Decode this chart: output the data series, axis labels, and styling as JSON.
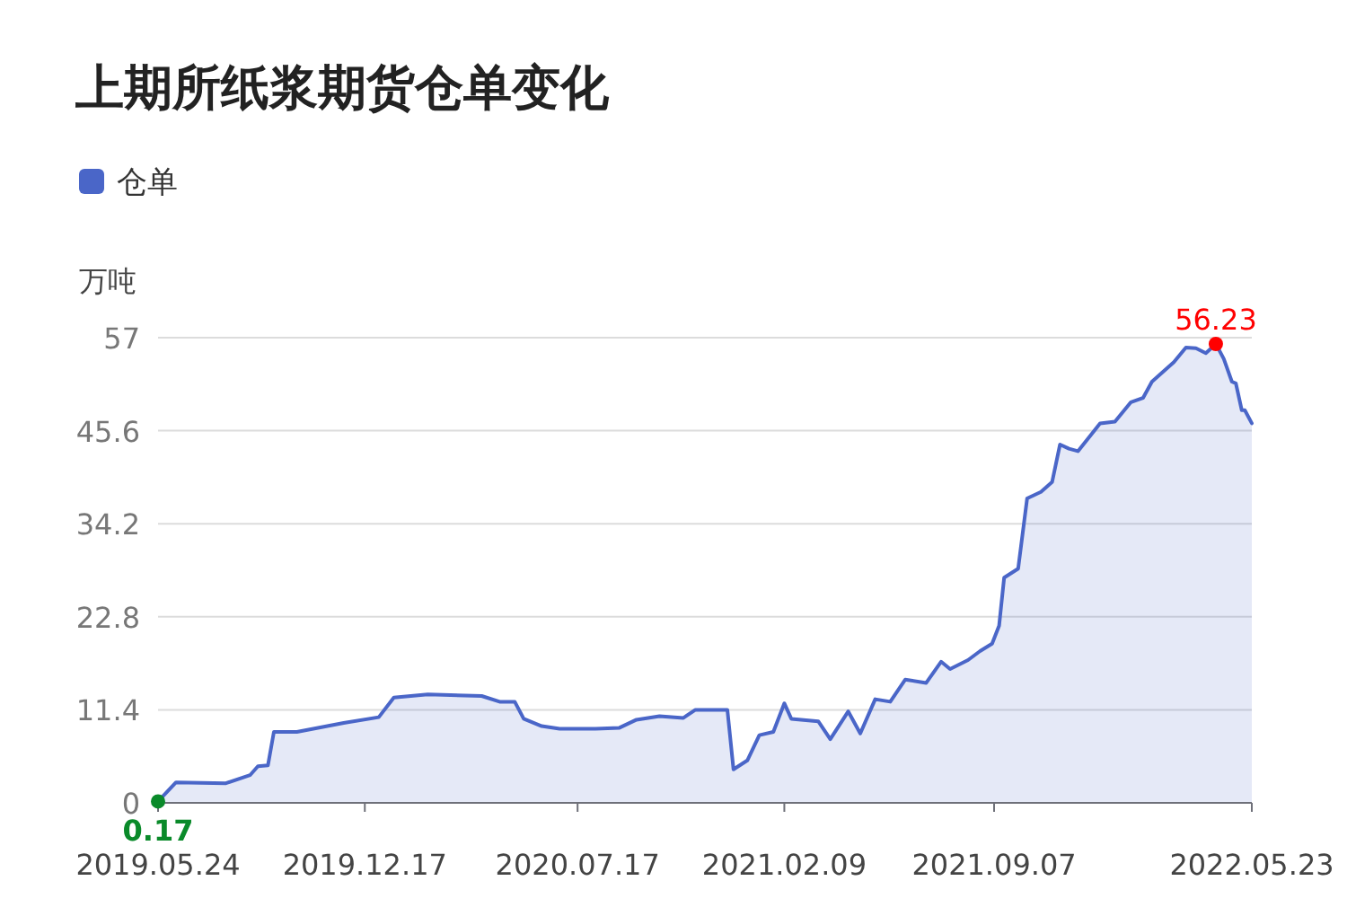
{
  "chart_data": {
    "type": "area",
    "title": "上期所纸浆期货仓单变化",
    "ylabel": "万吨",
    "x": [
      "2019-05-24",
      "2019-06-11",
      "2019-07-31",
      "2019-08-24",
      "2019-09-01",
      "2019-09-11",
      "2019-09-17",
      "2019-10-10",
      "2019-11-26",
      "2019-12-31",
      "2020-01-15",
      "2020-02-18",
      "2020-04-12",
      "2020-04-30",
      "2020-05-15",
      "2020-05-24",
      "2020-06-11",
      "2020-06-29",
      "2020-08-04",
      "2020-08-28",
      "2020-09-14",
      "2020-10-07",
      "2020-10-31",
      "2020-11-12",
      "2020-12-11",
      "2020-12-14",
      "2020-12-20",
      "2021-01-03",
      "2021-01-15",
      "2021-01-29",
      "2021-02-09",
      "2021-02-16",
      "2021-03-15",
      "2021-03-27",
      "2021-04-14",
      "2021-04-26",
      "2021-05-11",
      "2021-05-26",
      "2021-06-10",
      "2021-07-01",
      "2021-07-16",
      "2021-07-25",
      "2021-08-12",
      "2021-08-24",
      "2021-09-05",
      "2021-09-12",
      "2021-09-17",
      "2021-10-01",
      "2021-10-10",
      "2021-10-24",
      "2021-11-04",
      "2021-11-12",
      "2021-11-21",
      "2021-11-30",
      "2021-12-22",
      "2022-01-06",
      "2022-01-22",
      "2022-02-03",
      "2022-02-12",
      "2022-03-06",
      "2022-03-18",
      "2022-03-28",
      "2022-04-07",
      "2022-04-17",
      "2022-04-25",
      "2022-05-03",
      "2022-05-07",
      "2022-05-13",
      "2022-05-16",
      "2022-05-23"
    ],
    "series": [
      {
        "name": "仓单",
        "color": "#4a66c8",
        "values": [
          0.17,
          2.5,
          2.4,
          3.4,
          4.5,
          4.6,
          8.7,
          8.7,
          9.8,
          10.5,
          12.9,
          13.3,
          13.1,
          12.4,
          12.4,
          10.3,
          9.4,
          9.1,
          9.1,
          9.2,
          10.2,
          10.6,
          10.4,
          11.4,
          11.4,
          11.4,
          4.1,
          5.2,
          8.3,
          8.7,
          12.2,
          10.3,
          10.0,
          7.8,
          11.2,
          8.5,
          12.7,
          12.4,
          15.1,
          14.7,
          17.3,
          16.4,
          17.5,
          18.6,
          19.5,
          21.7,
          27.6,
          28.7,
          37.3,
          38.1,
          39.3,
          43.9,
          43.4,
          43.1,
          46.5,
          46.7,
          49.1,
          49.6,
          51.6,
          54.0,
          55.8,
          55.7,
          55.1,
          56.23,
          54.4,
          51.6,
          51.4,
          48.1,
          48.1,
          46.5
        ]
      }
    ],
    "annotations": [
      {
        "text": "0.17",
        "x": "2019-05-24",
        "y": 0.17
      },
      {
        "text": "56.23",
        "x": "2022-04-17",
        "y": 56.23
      }
    ],
    "xlim": [
      "2019-05-24",
      "2022-05-23"
    ],
    "xticks": [
      {
        "value": "2019-05-24",
        "label": "2019.05.24"
      },
      {
        "value": "2019-12-17",
        "label": "2019.12.17"
      },
      {
        "value": "2020-07-17",
        "label": "2020.07.17"
      },
      {
        "value": "2021-02-09",
        "label": "2021.02.09"
      },
      {
        "value": "2021-09-07",
        "label": "2021.09.07"
      },
      {
        "value": "2022-05-23",
        "label": "2022.05.23"
      }
    ],
    "ylim": [
      0,
      57
    ],
    "yticks": [
      0,
      11.4,
      22.8,
      34.2,
      45.6,
      57
    ],
    "grid": "y",
    "legend": "top left",
    "marker": "none"
  }
}
